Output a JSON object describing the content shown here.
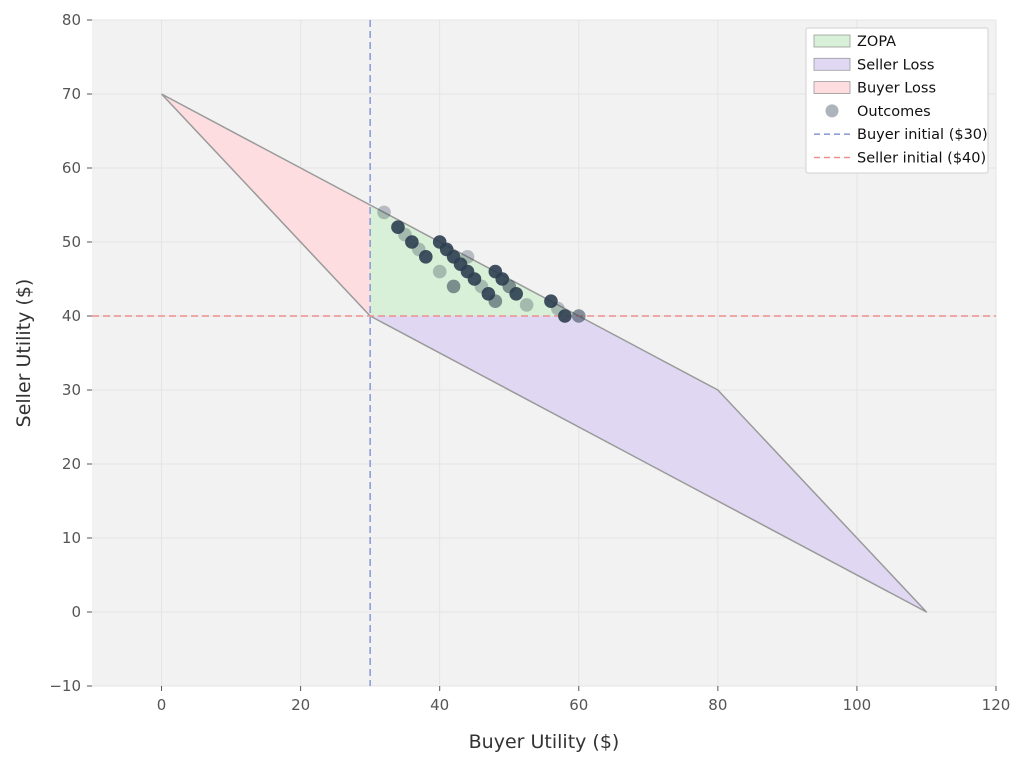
{
  "chart_data": {
    "type": "scatter",
    "title": "",
    "xlabel": "Buyer Utility ($)",
    "ylabel": "Seller Utility ($)",
    "xlim": [
      -10,
      120
    ],
    "ylim": [
      -10,
      80
    ],
    "xticks": [
      0,
      20,
      40,
      60,
      80,
      100,
      120
    ],
    "yticks": [
      -10,
      0,
      10,
      20,
      30,
      40,
      50,
      60,
      70,
      80
    ],
    "xtick_labels": [
      "0",
      "20",
      "40",
      "60",
      "80",
      "100",
      "120"
    ],
    "ytick_labels": [
      "−10",
      "0",
      "10",
      "20",
      "30",
      "40",
      "50",
      "60",
      "70",
      "80"
    ],
    "grid": true,
    "legend_position": "top-right",
    "regions": [
      {
        "name": "ZOPA",
        "color": "#d8efd8",
        "points": [
          [
            30,
            55
          ],
          [
            60,
            40
          ],
          [
            30,
            40
          ]
        ]
      },
      {
        "name": "Seller Loss",
        "color": "#e0d8f3",
        "points": [
          [
            30,
            40
          ],
          [
            60,
            40
          ],
          [
            80,
            30
          ],
          [
            110,
            0
          ]
        ]
      },
      {
        "name": "Buyer Loss",
        "color": "#fddde0",
        "points": [
          [
            0,
            70
          ],
          [
            30,
            55
          ],
          [
            30,
            40
          ]
        ]
      }
    ],
    "outline": [
      [
        0,
        70
      ],
      [
        30,
        55
      ],
      [
        60,
        40
      ],
      [
        80,
        30
      ],
      [
        110,
        0
      ],
      [
        30,
        40
      ],
      [
        0,
        70
      ]
    ],
    "reference_lines": [
      {
        "name": "Buyer initial ($30)",
        "orientation": "vertical",
        "value": 30,
        "color": "#8e9fd6"
      },
      {
        "name": "Seller initial ($40)",
        "orientation": "horizontal",
        "value": 40,
        "color": "#ee8f8f"
      }
    ],
    "series": [
      {
        "name": "Outcomes",
        "color": "#2c3e50",
        "points": [
          {
            "x": 32,
            "y": 54,
            "alpha": 0.3
          },
          {
            "x": 34,
            "y": 52,
            "alpha": 0.9
          },
          {
            "x": 35,
            "y": 51,
            "alpha": 0.3
          },
          {
            "x": 36,
            "y": 50,
            "alpha": 0.9
          },
          {
            "x": 37,
            "y": 49,
            "alpha": 0.3
          },
          {
            "x": 38,
            "y": 48,
            "alpha": 0.9
          },
          {
            "x": 40,
            "y": 50,
            "alpha": 0.9
          },
          {
            "x": 40,
            "y": 46,
            "alpha": 0.3
          },
          {
            "x": 41,
            "y": 49,
            "alpha": 0.9
          },
          {
            "x": 42,
            "y": 48,
            "alpha": 0.9
          },
          {
            "x": 42,
            "y": 44,
            "alpha": 0.55
          },
          {
            "x": 43,
            "y": 47,
            "alpha": 0.9
          },
          {
            "x": 44,
            "y": 46,
            "alpha": 0.9
          },
          {
            "x": 44,
            "y": 48,
            "alpha": 0.3
          },
          {
            "x": 45,
            "y": 45,
            "alpha": 0.9
          },
          {
            "x": 46,
            "y": 44,
            "alpha": 0.3
          },
          {
            "x": 47,
            "y": 43,
            "alpha": 0.9
          },
          {
            "x": 48,
            "y": 42,
            "alpha": 0.55
          },
          {
            "x": 48,
            "y": 46,
            "alpha": 0.9
          },
          {
            "x": 49,
            "y": 45,
            "alpha": 0.9
          },
          {
            "x": 50,
            "y": 44,
            "alpha": 0.55
          },
          {
            "x": 51,
            "y": 43,
            "alpha": 0.9
          },
          {
            "x": 52.5,
            "y": 41.5,
            "alpha": 0.3
          },
          {
            "x": 56,
            "y": 42,
            "alpha": 0.9
          },
          {
            "x": 57,
            "y": 41,
            "alpha": 0.3
          },
          {
            "x": 58,
            "y": 40,
            "alpha": 0.9
          },
          {
            "x": 60,
            "y": 40,
            "alpha": 0.55
          }
        ]
      }
    ],
    "legend": [
      {
        "label": "ZOPA",
        "kind": "patch",
        "color": "#d8efd8"
      },
      {
        "label": "Seller Loss",
        "kind": "patch",
        "color": "#e0d8f3"
      },
      {
        "label": "Buyer Loss",
        "kind": "patch",
        "color": "#fddde0"
      },
      {
        "label": "Outcomes",
        "kind": "marker",
        "color": "#aeb4bb"
      },
      {
        "label": "Buyer initial ($30)",
        "kind": "dashed",
        "color": "#8e9fd6"
      },
      {
        "label": "Seller initial ($40)",
        "kind": "dashed",
        "color": "#ee8f8f"
      }
    ]
  }
}
